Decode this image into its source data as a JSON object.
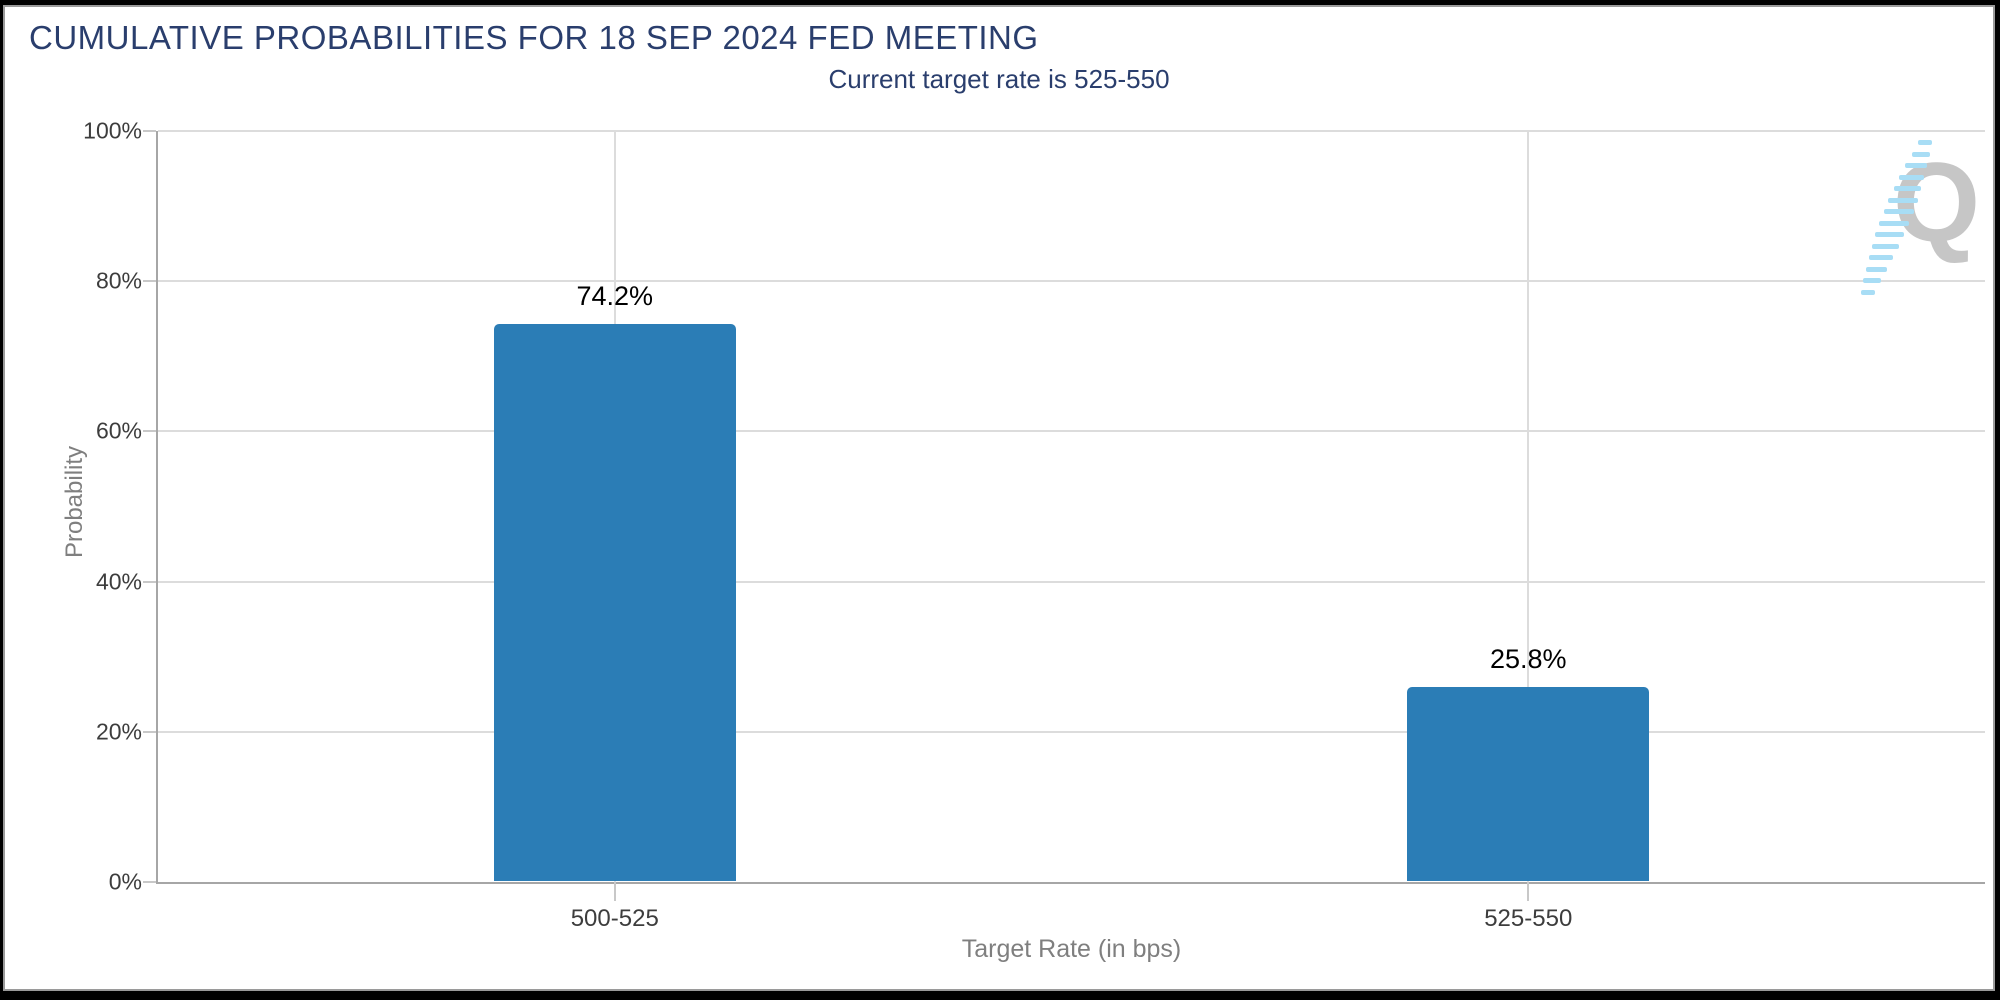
{
  "header": {
    "title": "CUMULATIVE PROBABILITIES FOR 18 SEP 2024 FED MEETING",
    "subtitle": "Current target rate is 525-550"
  },
  "chart_data": {
    "type": "bar",
    "title": "CUMULATIVE PROBABILITIES FOR 18 SEP 2024 FED MEETING",
    "subtitle": "Current target rate is 525-550",
    "categories": [
      "500-525",
      "525-550"
    ],
    "values": [
      74.2,
      25.8
    ],
    "value_labels": [
      "74.2%",
      "25.8%"
    ],
    "xlabel": "Target Rate (in bps)",
    "ylabel": "Probability",
    "ylim": [
      0,
      100
    ],
    "yticks": [
      0,
      20,
      40,
      60,
      80,
      100
    ],
    "ytick_labels": [
      "0%",
      "20%",
      "40%",
      "60%",
      "80%",
      "100%"
    ],
    "grid": true,
    "legend": false,
    "bar_color": "#2b7db6"
  },
  "colors": {
    "title_navy": "#2a3e6d",
    "bar_blue": "#2b7db6",
    "gridline": "#dcdcdc",
    "axis_line": "#a6a6a6",
    "tick_label": "#3d3d3d",
    "axis_title": "#7f7f7f",
    "watermark_gray": "#c6c6c6",
    "watermark_blue": "#a8ddf5"
  },
  "watermark": {
    "letter": "Q"
  }
}
